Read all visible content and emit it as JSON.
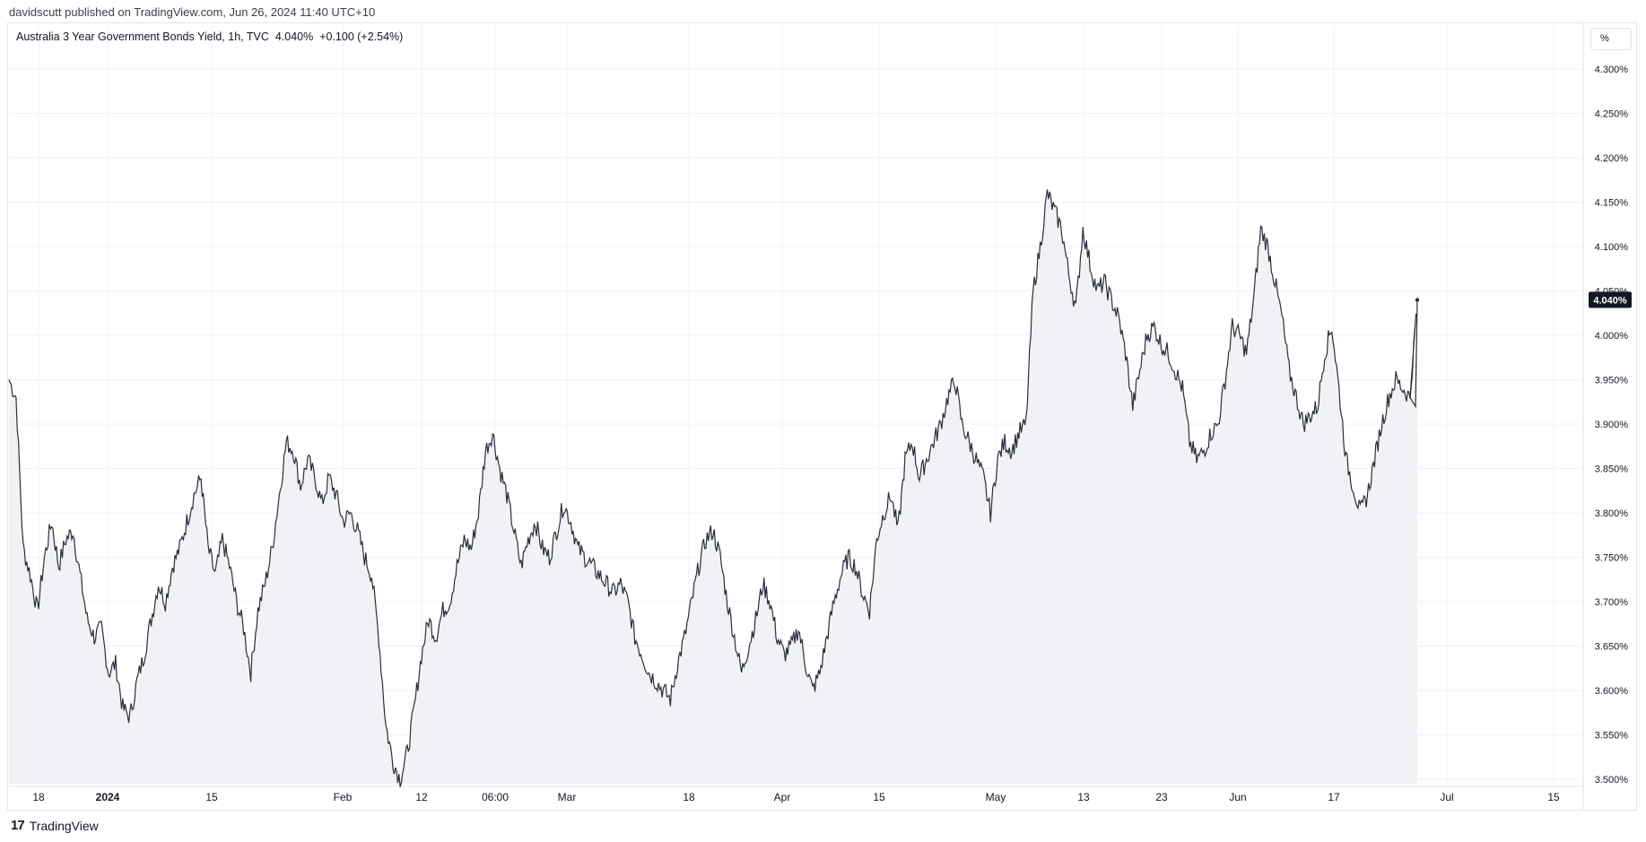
{
  "header": {
    "published": "davidscutt published on TradingView.com, Jun 26, 2024 11:40 UTC+10"
  },
  "legend": {
    "symbol": "Australia 3 Year Government Bonds Yield, 1h, TVC",
    "price": "4.040%",
    "change": "+0.100 (+2.54%)"
  },
  "unit_button": "%",
  "footer": {
    "logo_mark": "17",
    "logo_text": "TradingView"
  },
  "colors": {
    "line": "#2a2e39",
    "area": "#f1f2f5",
    "grid": "#f0f1f4",
    "badge": "#131722"
  },
  "chart_data": {
    "type": "area",
    "title": "Australia 3 Year Government Bonds Yield, 1h, TVC",
    "ylabel": "%",
    "ylim": [
      3.49,
      4.34
    ],
    "y_ticks": [
      "3.500%",
      "3.550%",
      "3.600%",
      "3.650%",
      "3.700%",
      "3.750%",
      "3.800%",
      "3.850%",
      "3.900%",
      "3.950%",
      "4.000%",
      "4.050%",
      "4.100%",
      "4.150%",
      "4.200%",
      "4.250%",
      "4.300%"
    ],
    "x_ticks": [
      "18",
      "2024",
      "15",
      "Feb",
      "12",
      "06:00",
      "Mar",
      "18",
      "Apr",
      "15",
      "May",
      "13",
      "23",
      "Jun",
      "17",
      "Jul",
      "15"
    ],
    "last_value_label": "4.040%",
    "last_value": 4.04,
    "grid": true,
    "series": [
      {
        "values": [
          3.95,
          3.93,
          3.76,
          3.73,
          3.69,
          3.75,
          3.79,
          3.74,
          3.77,
          3.78,
          3.73,
          3.68,
          3.66,
          3.67,
          3.62,
          3.63,
          3.58,
          3.57,
          3.61,
          3.64,
          3.68,
          3.72,
          3.7,
          3.74,
          3.76,
          3.79,
          3.82,
          3.84,
          3.76,
          3.73,
          3.77,
          3.74,
          3.7,
          3.67,
          3.62,
          3.69,
          3.72,
          3.76,
          3.82,
          3.88,
          3.87,
          3.83,
          3.86,
          3.84,
          3.81,
          3.84,
          3.82,
          3.79,
          3.8,
          3.78,
          3.75,
          3.73,
          3.66,
          3.56,
          3.52,
          3.5,
          3.53,
          3.58,
          3.64,
          3.68,
          3.66,
          3.69,
          3.7,
          3.74,
          3.77,
          3.76,
          3.8,
          3.87,
          3.89,
          3.85,
          3.82,
          3.78,
          3.74,
          3.77,
          3.79,
          3.76,
          3.75,
          3.78,
          3.81,
          3.79,
          3.76,
          3.75,
          3.74,
          3.73,
          3.72,
          3.71,
          3.72,
          3.7,
          3.66,
          3.64,
          3.62,
          3.61,
          3.6,
          3.59,
          3.63,
          3.66,
          3.7,
          3.74,
          3.77,
          3.78,
          3.75,
          3.7,
          3.66,
          3.62,
          3.65,
          3.68,
          3.72,
          3.7,
          3.66,
          3.64,
          3.65,
          3.67,
          3.63,
          3.6,
          3.62,
          3.66,
          3.7,
          3.73,
          3.75,
          3.74,
          3.71,
          3.69,
          3.77,
          3.8,
          3.82,
          3.78,
          3.86,
          3.88,
          3.84,
          3.86,
          3.88,
          3.9,
          3.93,
          3.95,
          3.9,
          3.88,
          3.86,
          3.84,
          3.8,
          3.86,
          3.88,
          3.87,
          3.89,
          3.9,
          4.05,
          4.1,
          4.16,
          4.14,
          4.12,
          4.07,
          4.03,
          4.12,
          4.08,
          4.05,
          4.06,
          4.04,
          4.02,
          3.98,
          3.92,
          3.96,
          4.0,
          4.01,
          3.99,
          3.98,
          3.96,
          3.94,
          3.88,
          3.86,
          3.87,
          3.89,
          3.9,
          3.95,
          4.01,
          4.0,
          3.98,
          4.04,
          4.12,
          4.1,
          4.06,
          4.02,
          3.96,
          3.93,
          3.9,
          3.91,
          3.92,
          3.98,
          4.01,
          3.94,
          3.86,
          3.83,
          3.8,
          3.82,
          3.86,
          3.9,
          3.93,
          3.95,
          3.94,
          3.93,
          4.04
        ]
      }
    ]
  }
}
